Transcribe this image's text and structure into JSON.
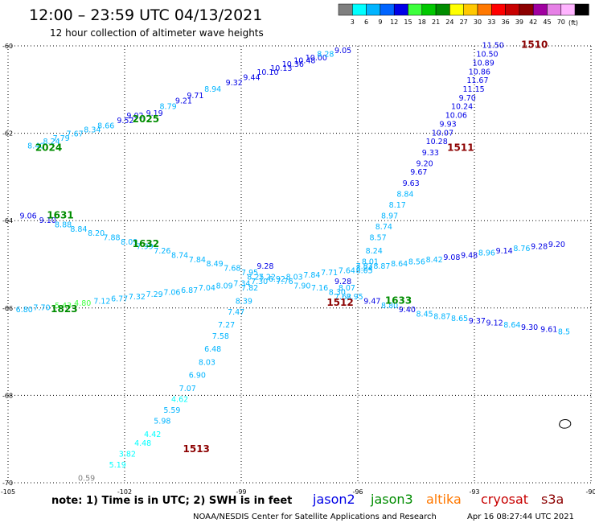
{
  "header": {
    "title": "12:00 – 23:59 UTC 04/13/2021",
    "subtitle": "12 hour collection of altimeter wave heights"
  },
  "colorbar": {
    "unit": "(ft)",
    "bins": [
      {
        "label": "",
        "color": "#7f7f7f"
      },
      {
        "label": "3",
        "color": "#00ffff"
      },
      {
        "label": "6",
        "color": "#00b4ff"
      },
      {
        "label": "9",
        "color": "#0064ff"
      },
      {
        "label": "12",
        "color": "#0000e6"
      },
      {
        "label": "15",
        "color": "#3cff3c"
      },
      {
        "label": "18",
        "color": "#00c800"
      },
      {
        "label": "21",
        "color": "#008c00"
      },
      {
        "label": "24",
        "color": "#ffff00"
      },
      {
        "label": "27",
        "color": "#ffc800"
      },
      {
        "label": "30",
        "color": "#ff7800"
      },
      {
        "label": "33",
        "color": "#ff0000"
      },
      {
        "label": "36",
        "color": "#c80000"
      },
      {
        "label": "39",
        "color": "#8c0000"
      },
      {
        "label": "42",
        "color": "#a000a0"
      },
      {
        "label": "45",
        "color": "#e680e6"
      },
      {
        "label": "70",
        "color": "#ffb4ff"
      },
      {
        "label": "",
        "color": "#000000"
      }
    ]
  },
  "note": "note: 1) Time is in UTC; 2) SWH is in feet",
  "satellites": [
    {
      "name": "jason2",
      "color": "#0000e6"
    },
    {
      "name": "jason3",
      "color": "#008c00"
    },
    {
      "name": "altika",
      "color": "#ff7800"
    },
    {
      "name": "cryosat",
      "color": "#c80000"
    },
    {
      "name": "s3a",
      "color": "#8c0000"
    }
  ],
  "footer": {
    "source": "NOAA/NESDIS Center for Satellite Applications and Research",
    "timestamp": "Apr 16 08:27:44 UTC 2021"
  },
  "chart_data": {
    "type": "scatter",
    "x_ticks": [
      "-105",
      "-102",
      "-99",
      "-96",
      "-93",
      "-90"
    ],
    "y_ticks": [
      "-60",
      "-62",
      "-64",
      "-66",
      "-68",
      "-70"
    ],
    "xlim": [
      -105,
      -90
    ],
    "ylim": [
      -70,
      -60
    ],
    "grid": true,
    "tracks": [
      {
        "pass": "2024",
        "pass_color": "#008c00",
        "label_pos": [
          -104.3,
          -62.4
        ],
        "points": [
          [
            -104.5,
            -62.35,
            "8.40",
            "#00b4ff"
          ],
          [
            -104.1,
            -62.25,
            "8.24",
            "#00b4ff"
          ],
          [
            -103.85,
            -62.17,
            "7.79",
            "#00b4ff"
          ],
          [
            -103.5,
            -62.07,
            "7.67",
            "#00b4ff"
          ],
          [
            -103.05,
            -61.98,
            "8.34",
            "#00b4ff"
          ],
          [
            -102.7,
            -61.89,
            "8.66",
            "#00b4ff"
          ],
          [
            -102.2,
            -61.77,
            "9.52",
            "#0000e6"
          ],
          [
            -101.95,
            -61.66,
            "9.02",
            "#0000e6"
          ],
          [
            -101.45,
            -61.6,
            "9.19",
            "#0000e6"
          ],
          [
            -101.1,
            -61.45,
            "8.79",
            "#00b4ff"
          ],
          [
            -100.7,
            -61.32,
            "9.21",
            "#0000e6"
          ],
          [
            -100.4,
            -61.2,
            "9.71",
            "#0000e6"
          ],
          [
            -99.95,
            -61.05,
            "8.94",
            "#00b4ff"
          ],
          [
            -99.4,
            -60.9,
            "9.32",
            "#0000e6"
          ],
          [
            -98.95,
            -60.78,
            "9.44",
            "#0000e6"
          ],
          [
            -98.6,
            -60.66,
            "10.10",
            "#0000e6"
          ],
          [
            -98.25,
            -60.57,
            "10.13",
            "#0000e6"
          ],
          [
            -97.95,
            -60.48,
            "10.36",
            "#0000e6"
          ],
          [
            -97.65,
            -60.4,
            "10.48",
            "#0000e6"
          ],
          [
            -97.35,
            -60.33,
            "10.00",
            "#0000e6"
          ],
          [
            -97.05,
            -60.25,
            "8.28",
            "#00b4ff"
          ],
          [
            -96.6,
            -60.17,
            "9.05",
            "#0000e6"
          ]
        ]
      },
      {
        "pass": "2025",
        "pass_color": "#008c00",
        "label_pos": [
          -101.8,
          -61.75
        ],
        "points": []
      },
      {
        "pass": "1510",
        "pass_color": "#8c0000",
        "label_pos": [
          -91.8,
          -60.05
        ],
        "points": [
          [
            -92.8,
            -60.05,
            "11.50",
            "#0000e6"
          ],
          [
            -92.95,
            -60.25,
            "10.50",
            "#0000e6"
          ],
          [
            -93.05,
            -60.45,
            "10.89",
            "#0000e6"
          ],
          [
            -93.15,
            -60.65,
            "10.86",
            "#0000e6"
          ],
          [
            -93.2,
            -60.85,
            "11.67",
            "#0000e6"
          ],
          [
            -93.3,
            -61.05,
            "11.15",
            "#0000e6"
          ],
          [
            -93.4,
            -61.25,
            "9.70",
            "#0000e6"
          ],
          [
            -93.6,
            -61.45,
            "10.24",
            "#0000e6"
          ],
          [
            -93.75,
            -61.65,
            "10.06",
            "#0000e6"
          ],
          [
            -93.9,
            -61.85,
            "9.93",
            "#0000e6"
          ],
          [
            -94.1,
            -62.05,
            "10.07",
            "#0000e6"
          ],
          [
            -94.25,
            -62.25,
            "10.28",
            "#0000e6"
          ],
          [
            -94.35,
            -62.5,
            "9.33",
            "#0000e6"
          ],
          [
            -94.5,
            -62.75,
            "9.20",
            "#0000e6"
          ],
          [
            -94.65,
            -62.95,
            "9.67",
            "#0000e6"
          ],
          [
            -94.85,
            -63.2,
            "9.63",
            "#0000e6"
          ],
          [
            -95.0,
            -63.45,
            "8.84",
            "#00b4ff"
          ],
          [
            -95.2,
            -63.7,
            "8.17",
            "#00b4ff"
          ],
          [
            -95.4,
            -63.95,
            "8.97",
            "#00b4ff"
          ],
          [
            -95.55,
            -64.2,
            "8.74",
            "#00b4ff"
          ],
          [
            -95.7,
            -64.45,
            "8.57",
            "#00b4ff"
          ],
          [
            -95.8,
            -64.75,
            "8.24",
            "#00b4ff"
          ],
          [
            -95.9,
            -65.0,
            "8.01",
            "#00b4ff"
          ],
          [
            -96.05,
            -65.1,
            "7.83",
            "#00b4ff"
          ],
          [
            -96.05,
            -65.2,
            "8.05",
            "#00b4ff"
          ],
          [
            -96.6,
            -65.45,
            "9.28",
            "#0000e6"
          ],
          [
            -96.5,
            -65.6,
            "8.07",
            "#00b4ff"
          ],
          [
            -96.6,
            -65.8,
            "7.62",
            "#00b4ff"
          ]
        ]
      },
      {
        "pass": "1511",
        "pass_color": "#8c0000",
        "label_pos": [
          -93.7,
          -62.4
        ],
        "points": []
      },
      {
        "pass": "1512",
        "pass_color": "#8c0000",
        "label_pos": [
          -96.8,
          -65.95
        ],
        "points": []
      },
      {
        "pass": "1513",
        "pass_color": "#8c0000",
        "label_pos": [
          -100.5,
          -69.3
        ],
        "points": [
          [
            -102.4,
            -69.65,
            "5.19",
            "#00ffff"
          ],
          [
            -102.15,
            -69.4,
            "3.82",
            "#00ffff"
          ],
          [
            -101.75,
            -69.15,
            "4.48",
            "#00ffff"
          ],
          [
            -101.5,
            -68.95,
            "4.42",
            "#00ffff"
          ],
          [
            -101.25,
            -68.65,
            "5.98",
            "#00b4ff"
          ],
          [
            -101.0,
            -68.4,
            "5.59",
            "#00b4ff"
          ],
          [
            -100.8,
            -68.15,
            "4.62",
            "#00ffff"
          ],
          [
            -100.6,
            -67.9,
            "7.07",
            "#00b4ff"
          ],
          [
            -100.35,
            -67.6,
            "6.90",
            "#00b4ff"
          ],
          [
            -100.1,
            -67.3,
            "8.03",
            "#00b4ff"
          ],
          [
            -99.95,
            -67.0,
            "6.48",
            "#00b4ff"
          ],
          [
            -99.75,
            -66.7,
            "7.58",
            "#00b4ff"
          ],
          [
            -99.6,
            -66.45,
            "7.27",
            "#00b4ff"
          ],
          [
            -99.35,
            -66.15,
            "7.47",
            "#00b4ff"
          ],
          [
            -99.15,
            -65.9,
            "8.39",
            "#00b4ff"
          ],
          [
            -99.0,
            -65.6,
            "7.82",
            "#00b4ff"
          ],
          [
            -98.85,
            -65.35,
            "8.25",
            "#00b4ff"
          ],
          [
            -98.6,
            -65.1,
            "9.28",
            "#0000e6"
          ]
        ]
      },
      {
        "pass": "1631",
        "pass_color": "#008c00",
        "label_pos": [
          -104.0,
          -63.95
        ],
        "points": [
          [
            -104.7,
            -63.95,
            "9.06",
            "#0000e6"
          ],
          [
            -104.2,
            -64.05,
            "9.10",
            "#0000e6"
          ],
          [
            -103.8,
            -64.15,
            "8.88",
            "#00b4ff"
          ],
          [
            -103.4,
            -64.25,
            "8.84",
            "#00b4ff"
          ],
          [
            -102.95,
            -64.35,
            "8.20",
            "#00b4ff"
          ],
          [
            -102.55,
            -64.45,
            "7.88",
            "#00b4ff"
          ],
          [
            -102.1,
            -64.55,
            "8.09",
            "#00b4ff"
          ],
          [
            -101.7,
            -64.65,
            "7.99",
            "#00b4ff"
          ],
          [
            -101.25,
            -64.75,
            "7.26",
            "#00b4ff"
          ],
          [
            -100.8,
            -64.85,
            "8.74",
            "#00b4ff"
          ],
          [
            -100.35,
            -64.95,
            "7.84",
            "#00b4ff"
          ],
          [
            -99.9,
            -65.05,
            "8.49",
            "#00b4ff"
          ],
          [
            -99.45,
            -65.15,
            "7.68",
            "#00b4ff"
          ],
          [
            -99.0,
            -65.25,
            "7.95",
            "#00b4ff"
          ],
          [
            -98.55,
            -65.35,
            "7.22",
            "#00b4ff"
          ],
          [
            -98.1,
            -65.45,
            "7.76",
            "#00b4ff"
          ],
          [
            -97.65,
            -65.55,
            "7.90",
            "#00b4ff"
          ],
          [
            -97.2,
            -65.6,
            "7.16",
            "#00b4ff"
          ],
          [
            -96.75,
            -65.7,
            "8.30",
            "#00b4ff"
          ],
          [
            -96.3,
            -65.8,
            "8.95",
            "#00b4ff"
          ],
          [
            -95.85,
            -65.9,
            "9.47",
            "#0000e6"
          ],
          [
            -95.4,
            -66.0,
            "8.80",
            "#00b4ff"
          ],
          [
            -94.95,
            -66.1,
            "9.40",
            "#0000e6"
          ],
          [
            -94.5,
            -66.2,
            "8.45",
            "#00b4ff"
          ],
          [
            -94.05,
            -66.25,
            "8.87",
            "#00b4ff"
          ],
          [
            -93.6,
            -66.3,
            "8.65",
            "#00b4ff"
          ],
          [
            -93.15,
            -66.35,
            "9.37",
            "#0000e6"
          ],
          [
            -92.7,
            -66.4,
            "9.12",
            "#0000e6"
          ],
          [
            -92.25,
            -66.45,
            "8.64",
            "#00b4ff"
          ],
          [
            -91.8,
            -66.5,
            "9.30",
            "#0000e6"
          ],
          [
            -91.3,
            -66.55,
            "9.61",
            "#0000e6"
          ],
          [
            -90.85,
            -66.6,
            "8.5",
            "#00b4ff"
          ]
        ]
      },
      {
        "pass": "1632",
        "pass_color": "#008c00",
        "label_pos": [
          -101.8,
          -64.6
        ],
        "points": []
      },
      {
        "pass": "1633",
        "pass_color": "#008c00",
        "label_pos": [
          -95.3,
          -65.9
        ],
        "points": []
      },
      {
        "pass": "1823",
        "pass_color": "#008c00",
        "label_pos": [
          -103.9,
          -66.1
        ],
        "points": [
          [
            -104.8,
            -66.1,
            "6.80",
            "#00b4ff"
          ],
          [
            -104.35,
            -66.05,
            "7.70",
            "#00b4ff"
          ],
          [
            -103.8,
            -66.0,
            "5.43",
            "#3cff3c"
          ],
          [
            -103.3,
            -65.95,
            "4.80",
            "#3cff3c"
          ],
          [
            -102.8,
            -65.9,
            "7.12",
            "#00b4ff"
          ],
          [
            -102.35,
            -65.85,
            "6.77",
            "#00b4ff"
          ],
          [
            -101.9,
            -65.8,
            "7.32",
            "#00b4ff"
          ],
          [
            -101.45,
            -65.75,
            "7.29",
            "#00b4ff"
          ],
          [
            -101.0,
            -65.7,
            "7.06",
            "#00b4ff"
          ],
          [
            -100.55,
            -65.65,
            "6.87",
            "#00b4ff"
          ],
          [
            -100.1,
            -65.6,
            "7.04",
            "#00b4ff"
          ],
          [
            -99.65,
            -65.55,
            "8.09",
            "#00b4ff"
          ],
          [
            -99.2,
            -65.5,
            "7.34",
            "#00b4ff"
          ],
          [
            -98.75,
            -65.45,
            "7.30",
            "#00b4ff"
          ],
          [
            -98.3,
            -65.4,
            "6.92",
            "#00b4ff"
          ],
          [
            -97.85,
            -65.35,
            "8.03",
            "#00b4ff"
          ],
          [
            -97.4,
            -65.3,
            "7.84",
            "#00b4ff"
          ],
          [
            -96.95,
            -65.25,
            "7.71",
            "#00b4ff"
          ],
          [
            -96.5,
            -65.2,
            "7.64",
            "#00b4ff"
          ],
          [
            -96.05,
            -65.15,
            "8.24",
            "#00b4ff"
          ],
          [
            -95.6,
            -65.1,
            "8.87",
            "#00b4ff"
          ],
          [
            -95.15,
            -65.05,
            "8.64",
            "#00b4ff"
          ],
          [
            -94.7,
            -65.0,
            "8.56",
            "#00b4ff"
          ],
          [
            -94.25,
            -64.95,
            "8.42",
            "#00b4ff"
          ],
          [
            -93.8,
            -64.9,
            "9.08",
            "#0000e6"
          ],
          [
            -93.35,
            -64.85,
            "9.48",
            "#0000e6"
          ],
          [
            -92.9,
            -64.8,
            "8.96",
            "#00b4ff"
          ],
          [
            -92.45,
            -64.75,
            "9.14",
            "#0000e6"
          ],
          [
            -92.0,
            -64.7,
            "8.76",
            "#00b4ff"
          ],
          [
            -91.55,
            -64.65,
            "9.28",
            "#0000e6"
          ],
          [
            -91.1,
            -64.6,
            "9.20",
            "#0000e6"
          ]
        ]
      }
    ],
    "extra_labels": [
      {
        "lon": -103.2,
        "lat": -69.95,
        "text": "0.59",
        "color": "#7f7f7f"
      }
    ]
  }
}
